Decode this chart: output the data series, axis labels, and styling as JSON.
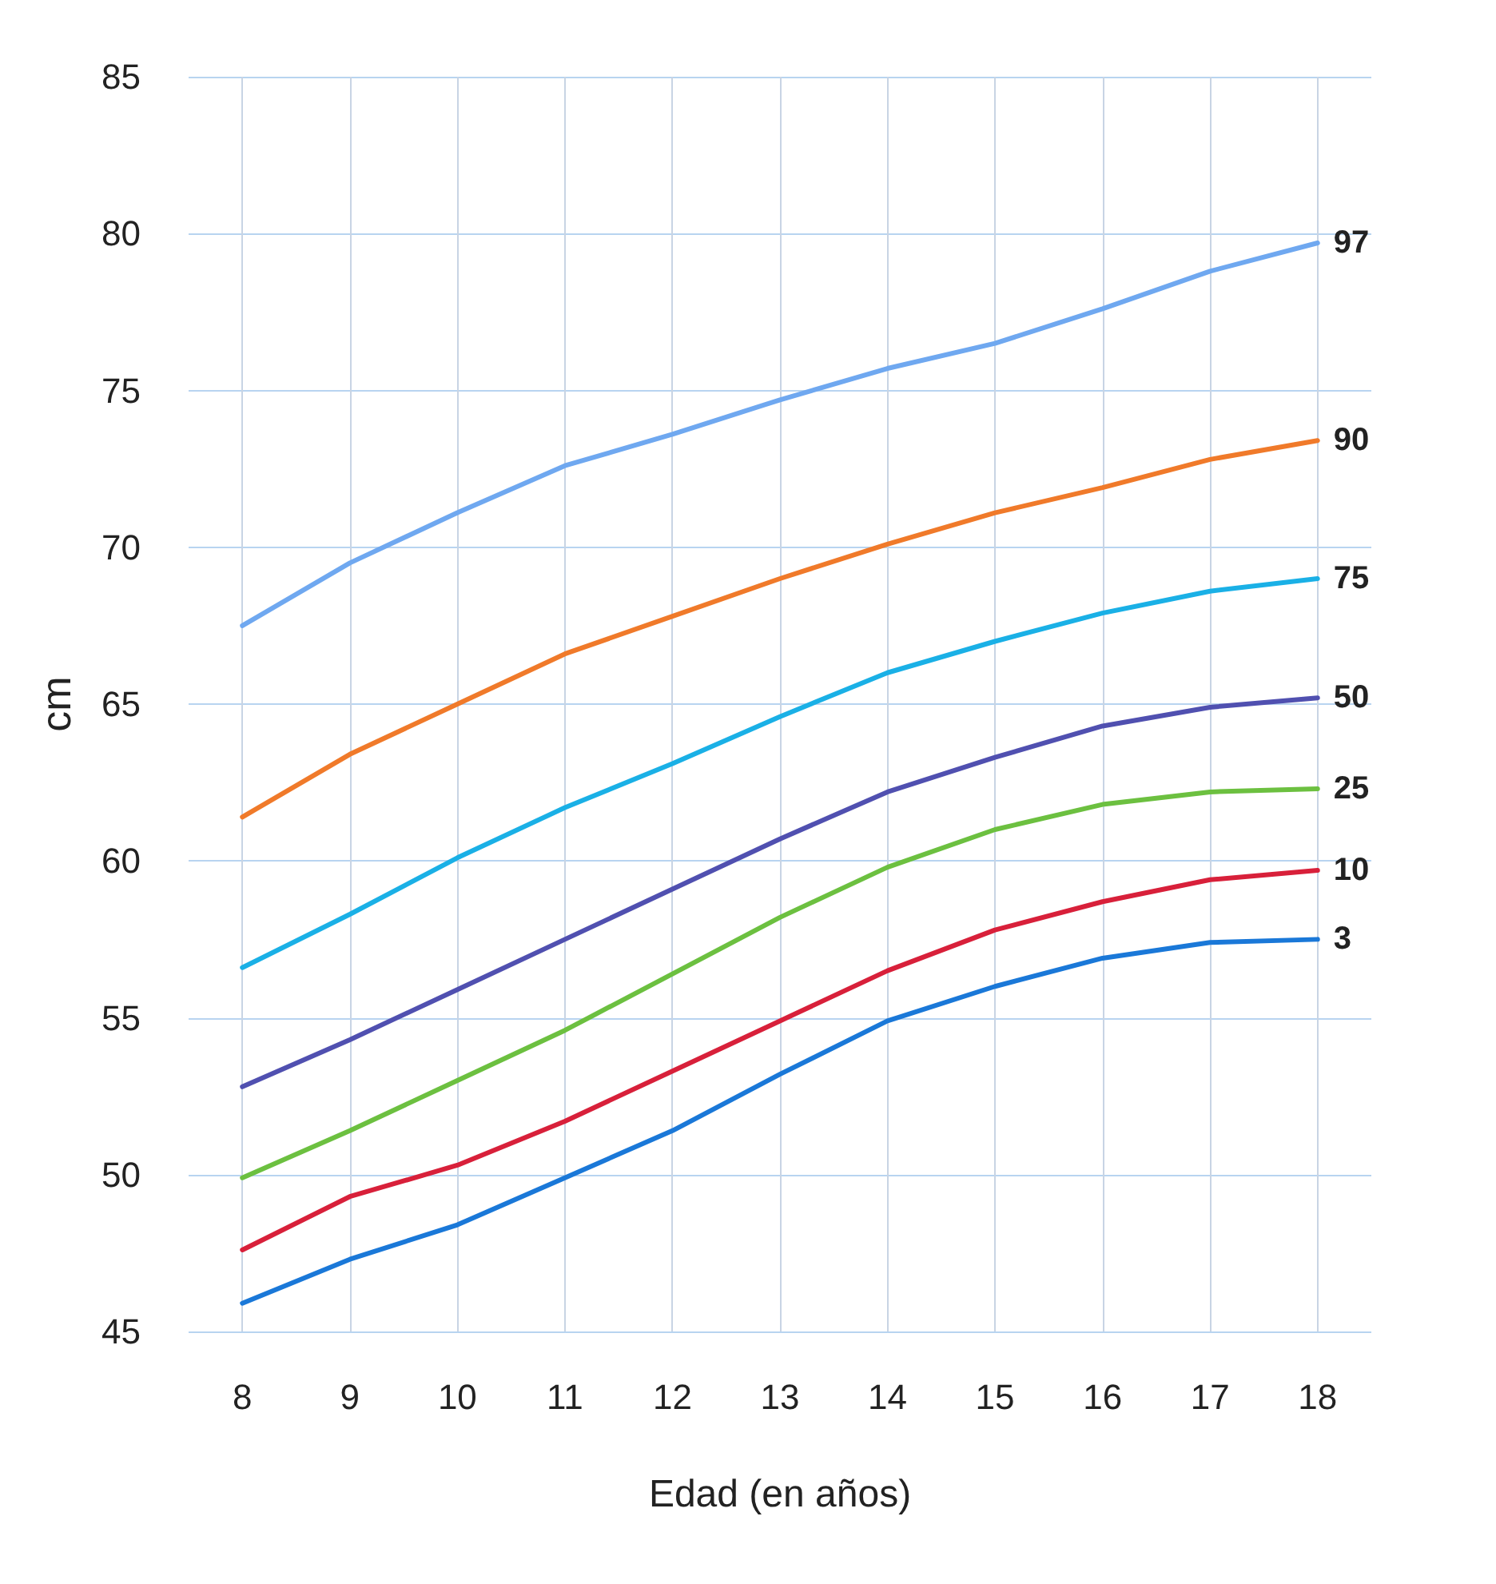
{
  "chart_data": {
    "type": "line",
    "xlabel": "Edad (en años)",
    "ylabel": "cm",
    "x": [
      8,
      9,
      10,
      11,
      12,
      13,
      14,
      15,
      16,
      17,
      18
    ],
    "xlim": [
      7.5,
      18.5
    ],
    "xticks": [
      8,
      9,
      10,
      11,
      12,
      13,
      14,
      15,
      16,
      17,
      18
    ],
    "ylim": [
      45,
      85
    ],
    "yticks": [
      45,
      50,
      55,
      60,
      65,
      70,
      75,
      80,
      85
    ],
    "grid": true,
    "legend": false,
    "marker": "none",
    "line_style": "solid",
    "series": [
      {
        "name": "97",
        "color": "#6fa8f0",
        "values": [
          67.5,
          69.5,
          71.1,
          72.6,
          73.6,
          74.7,
          75.7,
          76.5,
          77.6,
          78.8,
          79.7
        ]
      },
      {
        "name": "90",
        "color": "#f07a2a",
        "values": [
          61.4,
          63.4,
          65.0,
          66.6,
          67.8,
          69.0,
          70.1,
          71.1,
          71.9,
          72.8,
          73.4
        ]
      },
      {
        "name": "75",
        "color": "#1ab0e6",
        "values": [
          56.6,
          58.3,
          60.1,
          61.7,
          63.1,
          64.6,
          66.0,
          67.0,
          67.9,
          68.6,
          69.0
        ]
      },
      {
        "name": "50",
        "color": "#5050b0",
        "values": [
          52.8,
          54.3,
          55.9,
          57.5,
          59.1,
          60.7,
          62.2,
          63.3,
          64.3,
          64.9,
          65.2
        ]
      },
      {
        "name": "25",
        "color": "#6cc040",
        "values": [
          49.9,
          51.4,
          53.0,
          54.6,
          56.4,
          58.2,
          59.8,
          61.0,
          61.8,
          62.2,
          62.3
        ]
      },
      {
        "name": "10",
        "color": "#d8203a",
        "values": [
          47.6,
          49.3,
          50.3,
          51.7,
          53.3,
          54.9,
          56.5,
          57.8,
          58.7,
          59.4,
          59.7
        ]
      },
      {
        "name": "3",
        "color": "#1a78d8",
        "values": [
          45.9,
          47.3,
          48.4,
          49.9,
          51.4,
          53.2,
          54.9,
          56.0,
          56.9,
          57.4,
          57.5
        ]
      }
    ]
  }
}
